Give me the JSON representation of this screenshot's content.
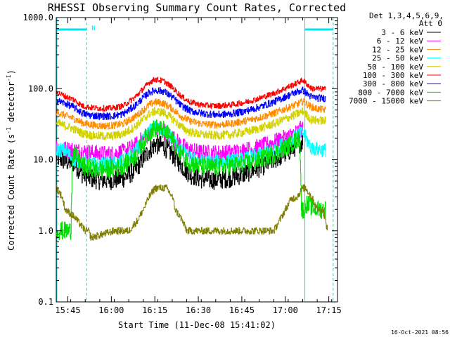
{
  "chart_data": {
    "type": "line",
    "title": "RHESSI Observing Summary Count Rates, Corrected",
    "xlabel": "Start Time (11-Dec-08 15:41:02)",
    "ylabel": "Corrected Count Rate (s",
    "ylabel_sup1": "-1",
    "ylabel_mid": " detector",
    "ylabel_sup2": "-1",
    "ylabel_end": ")",
    "y_scale": "log",
    "ylim": [
      0.1,
      1000
    ],
    "xlim_minutes": [
      0,
      97
    ],
    "x_ticks": [
      {
        "t": 4,
        "label": "15:45"
      },
      {
        "t": 19,
        "label": "16:00"
      },
      {
        "t": 34,
        "label": "16:15"
      },
      {
        "t": 49,
        "label": "16:30"
      },
      {
        "t": 64,
        "label": "16:45"
      },
      {
        "t": 79,
        "label": "17:00"
      },
      {
        "t": 94,
        "label": "17:15"
      }
    ],
    "y_ticks": [
      {
        "v": 1000,
        "label": "1000.0"
      },
      {
        "v": 100,
        "label": "100.0"
      },
      {
        "v": 10,
        "label": "10.0"
      },
      {
        "v": 1,
        "label": "1.0"
      },
      {
        "v": 0.1,
        "label": "0.1"
      }
    ],
    "legend_header": [
      "Det 1,3,4,5,6,9,",
      "Att 0"
    ],
    "legend_position": "top-right outside",
    "grid": false,
    "night_marker": "N",
    "night_intervals_minutes": [
      [
        0,
        10.5
      ],
      [
        85.5,
        95.5
      ]
    ],
    "series": [
      {
        "name": "3 - 6 keV",
        "color": "#000000",
        "t": [
          0,
          3,
          6,
          9,
          12,
          15,
          19,
          23,
          27,
          30,
          32,
          34,
          37,
          40,
          43,
          46,
          50,
          55,
          60,
          65,
          70,
          75,
          80,
          83,
          85
        ],
        "v": [
          11.0,
          9.5,
          9.0,
          6.3,
          5.5,
          5.2,
          5.2,
          5.5,
          7.0,
          10.5,
          13.5,
          16.5,
          15.5,
          12.0,
          8.5,
          6.3,
          5.4,
          5.2,
          5.6,
          6.4,
          7.8,
          10.0,
          13.0,
          16.0,
          18.5
        ]
      },
      {
        "name": "6 - 12 keV",
        "color": "#ff00ff",
        "t": [
          0,
          3,
          6,
          9,
          12,
          15,
          19,
          23,
          27,
          30,
          32,
          34,
          37,
          40,
          43,
          46,
          50,
          55,
          60,
          65,
          70,
          75,
          80,
          83,
          85
        ],
        "v": [
          15.0,
          14.0,
          13.5,
          13.0,
          12.5,
          12.0,
          12.0,
          12.8,
          15.5,
          20.0,
          24.5,
          27.0,
          25.5,
          20.5,
          16.0,
          13.5,
          12.5,
          12.3,
          12.5,
          13.5,
          15.0,
          17.5,
          21.0,
          24.5,
          28.0
        ]
      },
      {
        "name": "12 - 25 keV",
        "color": "#ff8c00",
        "t": [
          0,
          3,
          6,
          9,
          12,
          15,
          19,
          23,
          27,
          30,
          32,
          34,
          37,
          40,
          43,
          46,
          50,
          55,
          60,
          65,
          70,
          75,
          80,
          83,
          85,
          88,
          90,
          93
        ],
        "v": [
          47.0,
          42.0,
          38.0,
          33.0,
          31.0,
          30.0,
          30.0,
          32.0,
          40.0,
          50.0,
          59.0,
          65.0,
          62.0,
          52.0,
          41.0,
          35.0,
          32.0,
          31.0,
          32.0,
          35.0,
          39.0,
          45.0,
          54.0,
          60.0,
          66.0,
          55.0,
          52.0,
          50.0
        ]
      },
      {
        "name": "25 - 50 keV",
        "color": "#00ffff",
        "t": [
          0,
          3,
          6,
          9,
          12,
          15,
          19,
          23,
          27,
          30,
          32,
          34,
          37,
          40,
          43,
          46,
          50,
          55,
          60,
          65,
          70,
          75,
          80,
          83,
          85,
          88,
          90,
          93
        ],
        "v": [
          14.0,
          13.5,
          10.0,
          9.3,
          8.8,
          8.6,
          8.7,
          9.5,
          12.5,
          19.0,
          25.0,
          29.0,
          27.0,
          20.0,
          13.5,
          10.5,
          9.5,
          9.3,
          9.6,
          10.3,
          11.8,
          14.0,
          18.0,
          22.0,
          24.0,
          14.5,
          14.0,
          13.5
        ]
      },
      {
        "name": "50 - 100 keV",
        "color": "#d2d200",
        "t": [
          0,
          3,
          6,
          9,
          12,
          15,
          19,
          23,
          27,
          30,
          32,
          34,
          37,
          40,
          43,
          46,
          50,
          55,
          60,
          65,
          70,
          75,
          80,
          83,
          85,
          88,
          90,
          93
        ],
        "v": [
          33.0,
          30.0,
          27.0,
          23.5,
          22.0,
          21.5,
          21.5,
          23.0,
          29.0,
          37.0,
          44.0,
          48.0,
          46.0,
          38.0,
          29.0,
          24.5,
          22.5,
          22.0,
          22.5,
          24.5,
          27.5,
          32.0,
          39.0,
          44.0,
          48.0,
          36.0,
          36.0,
          35.0
        ]
      },
      {
        "name": "100 - 300 keV",
        "color": "#ff0000",
        "t": [
          0,
          3,
          6,
          9,
          12,
          15,
          19,
          23,
          27,
          30,
          32,
          34,
          37,
          40,
          43,
          46,
          50,
          55,
          60,
          65,
          70,
          75,
          80,
          83,
          85,
          88,
          90,
          93
        ],
        "v": [
          90.0,
          78.0,
          70.0,
          57.0,
          54.0,
          53.0,
          53.0,
          57.0,
          75.0,
          100.0,
          122.0,
          135.0,
          128.0,
          104.0,
          78.0,
          65.0,
          59.0,
          57.0,
          59.0,
          64.0,
          73.0,
          86.0,
          106.0,
          120.0,
          132.0,
          100.0,
          100.0,
          98.0
        ]
      },
      {
        "name": "300 - 800 keV",
        "color": "#0000ff",
        "t": [
          0,
          3,
          6,
          9,
          12,
          15,
          19,
          23,
          27,
          30,
          32,
          34,
          37,
          40,
          43,
          46,
          50,
          55,
          60,
          65,
          70,
          75,
          80,
          83,
          85,
          88,
          90,
          93
        ],
        "v": [
          68.0,
          62.0,
          55.0,
          45.0,
          42.0,
          41.0,
          41.0,
          44.0,
          57.0,
          75.0,
          88.0,
          95.0,
          92.0,
          76.0,
          58.0,
          49.0,
          45.0,
          43.0,
          44.0,
          48.0,
          55.0,
          65.0,
          80.0,
          90.0,
          95.0,
          76.0,
          74.0,
          73.0
        ]
      },
      {
        "name": "800 - 7000 keV",
        "color": "#00dd00",
        "t": [
          0,
          3,
          5,
          5.5,
          7,
          9,
          12,
          15,
          19,
          23,
          27,
          30,
          32,
          34,
          37,
          40,
          43,
          46,
          50,
          55,
          60,
          65,
          70,
          75,
          80,
          83,
          84,
          84.5,
          85.5,
          86,
          90,
          93
        ],
        "v": [
          1.0,
          1.0,
          1.0,
          12.0,
          11.0,
          8.0,
          7.5,
          7.3,
          7.4,
          8.2,
          11.0,
          17.5,
          24.0,
          28.0,
          26.0,
          19.0,
          12.0,
          9.0,
          8.0,
          7.8,
          8.1,
          8.7,
          10.0,
          12.0,
          15.5,
          19.0,
          21.0,
          2.0,
          2.0,
          2.4,
          2.0,
          2.0
        ]
      },
      {
        "name": "7000 - 15000 keV",
        "color": "#808000",
        "t": [
          0,
          2,
          3,
          6,
          10,
          11,
          12,
          20,
          25,
          28,
          30,
          32,
          34,
          38,
          40,
          41,
          43,
          45,
          50,
          60,
          70,
          75,
          77,
          79,
          81,
          83,
          85,
          86,
          88,
          90,
          92,
          93.5
        ],
        "v": [
          4.0,
          3.0,
          2.0,
          1.6,
          1.0,
          1.0,
          0.8,
          1.0,
          1.0,
          1.4,
          2.0,
          3.0,
          4.0,
          4.0,
          3.0,
          2.0,
          1.5,
          1.0,
          1.0,
          1.0,
          1.0,
          1.0,
          1.4,
          2.0,
          2.8,
          3.0,
          4.0,
          4.0,
          3.0,
          2.0,
          2.0,
          1.0
        ]
      }
    ]
  },
  "timestamp": "16-Oct-2021 08:56"
}
